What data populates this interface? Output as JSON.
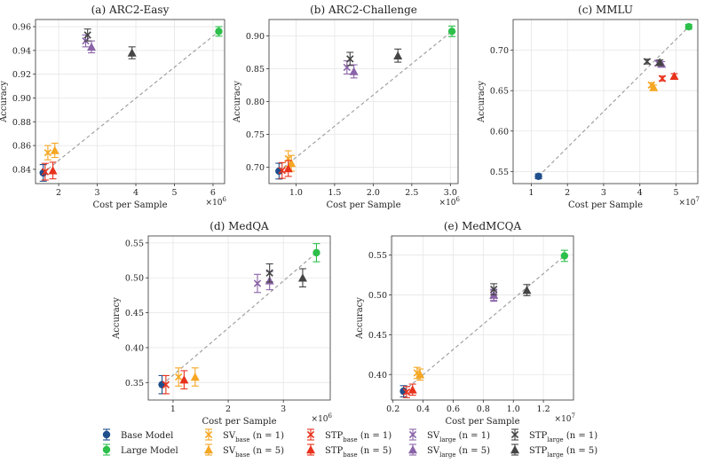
{
  "figure": {
    "legend": [
      {
        "label": "Base Model",
        "color": "#1f4e8c",
        "marker": "circle"
      },
      {
        "label": "Large Model",
        "color": "#2cc04a",
        "marker": "circle"
      },
      {
        "label": "SV",
        "sub": "base",
        "suffix": " (n = 1)",
        "color": "#f5a623",
        "marker": "x"
      },
      {
        "label": "SV",
        "sub": "base",
        "suffix": " (n = 5)",
        "color": "#f5a623",
        "marker": "triangle"
      },
      {
        "label": "STP",
        "sub": "base",
        "suffix": " (n = 1)",
        "color": "#e8321c",
        "marker": "x"
      },
      {
        "label": "STP",
        "sub": "base",
        "suffix": " (n = 5)",
        "color": "#e8321c",
        "marker": "triangle"
      },
      {
        "label": "SV",
        "sub": "large",
        "suffix": " (n = 1)",
        "color": "#8a63a8",
        "marker": "x"
      },
      {
        "label": "SV",
        "sub": "large",
        "suffix": " (n = 5)",
        "color": "#8a63a8",
        "marker": "triangle"
      },
      {
        "label": "STP",
        "sub": "large",
        "suffix": " (n = 1)",
        "color": "#444444",
        "marker": "x"
      },
      {
        "label": "STP",
        "sub": "large",
        "suffix": " (n = 5)",
        "color": "#444444",
        "marker": "triangle"
      }
    ]
  },
  "chart_data": [
    {
      "type": "scatter",
      "title": "(a) ARC2-Easy",
      "xlabel": "Cost per Sample",
      "ylabel": "Accuracy",
      "x_exponent": "×10^6",
      "xlim": [
        1.4,
        6.3
      ],
      "ylim": [
        0.828,
        0.966
      ],
      "xticks": [
        2,
        3,
        4,
        5,
        6
      ],
      "yticks": [
        0.84,
        0.86,
        0.88,
        0.9,
        0.92,
        0.94,
        0.96
      ],
      "ytick_labels": [
        "0.84",
        "0.86",
        "0.88",
        "0.90",
        "0.92",
        "0.94",
        "0.96"
      ],
      "trend": [
        [
          1.6,
          0.837
        ],
        [
          6.15,
          0.956
        ]
      ],
      "points": [
        {
          "series": 0,
          "x": 1.6,
          "y": 0.837,
          "err": 0.007
        },
        {
          "series": 1,
          "x": 6.15,
          "y": 0.956,
          "err": 0.004
        },
        {
          "series": 2,
          "x": 1.72,
          "y": 0.854,
          "err": 0.006
        },
        {
          "series": 3,
          "x": 1.9,
          "y": 0.856,
          "err": 0.006
        },
        {
          "series": 4,
          "x": 1.65,
          "y": 0.838,
          "err": 0.007
        },
        {
          "series": 5,
          "x": 1.85,
          "y": 0.839,
          "err": 0.007
        },
        {
          "series": 6,
          "x": 2.7,
          "y": 0.948,
          "err": 0.005
        },
        {
          "series": 7,
          "x": 2.85,
          "y": 0.943,
          "err": 0.005
        },
        {
          "series": 8,
          "x": 2.75,
          "y": 0.953,
          "err": 0.005
        },
        {
          "series": 9,
          "x": 3.9,
          "y": 0.938,
          "err": 0.005
        }
      ]
    },
    {
      "type": "scatter",
      "title": "(b) ARC2-Challenge",
      "xlabel": "Cost per Sample",
      "ylabel": "Accuracy",
      "x_exponent": "×10^6",
      "xlim": [
        0.65,
        3.1
      ],
      "ylim": [
        0.675,
        0.925
      ],
      "xticks": [
        1.0,
        1.5,
        2.0,
        2.5,
        3.0
      ],
      "yticks": [
        0.7,
        0.75,
        0.8,
        0.85,
        0.9
      ],
      "xtick_labels": [
        "1.0",
        "1.5",
        "2.0",
        "2.5",
        "3.0"
      ],
      "ytick_labels": [
        "0.70",
        "0.75",
        "0.80",
        "0.85",
        "0.90"
      ],
      "trend": [
        [
          0.78,
          0.694
        ],
        [
          3.02,
          0.907
        ]
      ],
      "points": [
        {
          "series": 0,
          "x": 0.78,
          "y": 0.694,
          "err": 0.012
        },
        {
          "series": 1,
          "x": 3.02,
          "y": 0.907,
          "err": 0.008
        },
        {
          "series": 2,
          "x": 0.9,
          "y": 0.713,
          "err": 0.012
        },
        {
          "series": 3,
          "x": 0.94,
          "y": 0.706,
          "err": 0.012
        },
        {
          "series": 4,
          "x": 0.82,
          "y": 0.695,
          "err": 0.012
        },
        {
          "series": 5,
          "x": 0.9,
          "y": 0.698,
          "err": 0.012
        },
        {
          "series": 6,
          "x": 1.66,
          "y": 0.852,
          "err": 0.01
        },
        {
          "series": 7,
          "x": 1.75,
          "y": 0.846,
          "err": 0.01
        },
        {
          "series": 8,
          "x": 1.7,
          "y": 0.865,
          "err": 0.01
        },
        {
          "series": 9,
          "x": 2.32,
          "y": 0.87,
          "err": 0.01
        }
      ]
    },
    {
      "type": "scatter",
      "title": "(c) MMLU",
      "xlabel": "Cost per Sample",
      "ylabel": "Accuracy",
      "x_exponent": "×10^7",
      "xlim": [
        0.5,
        5.6
      ],
      "ylim": [
        0.535,
        0.738
      ],
      "xticks": [
        1,
        2,
        3,
        4,
        5
      ],
      "yticks": [
        0.55,
        0.6,
        0.65,
        0.7
      ],
      "ytick_labels": [
        "0.55",
        "0.60",
        "0.65",
        "0.70"
      ],
      "trend": [
        [
          1.2,
          0.544
        ],
        [
          5.35,
          0.729
        ]
      ],
      "points": [
        {
          "series": 0,
          "x": 1.2,
          "y": 0.544,
          "err": 0.003
        },
        {
          "series": 1,
          "x": 5.35,
          "y": 0.729,
          "err": 0.003
        },
        {
          "series": 2,
          "x": 4.32,
          "y": 0.657,
          "err": 0.003
        },
        {
          "series": 3,
          "x": 4.38,
          "y": 0.654,
          "err": 0.003
        },
        {
          "series": 4,
          "x": 4.62,
          "y": 0.665,
          "err": 0.003
        },
        {
          "series": 5,
          "x": 4.95,
          "y": 0.668,
          "err": 0.003
        },
        {
          "series": 6,
          "x": 4.5,
          "y": 0.684,
          "err": 0.003
        },
        {
          "series": 7,
          "x": 4.6,
          "y": 0.683,
          "err": 0.003
        },
        {
          "series": 8,
          "x": 4.2,
          "y": 0.686,
          "err": 0.003
        },
        {
          "series": 9,
          "x": 4.55,
          "y": 0.685,
          "err": 0.003
        }
      ]
    },
    {
      "type": "scatter",
      "title": "(d) MedQA",
      "xlabel": "Cost per Sample",
      "ylabel": "Accuracy",
      "x_exponent": "×10^6",
      "xlim": [
        0.55,
        3.85
      ],
      "ylim": [
        0.325,
        0.56
      ],
      "xticks": [
        1,
        2,
        3
      ],
      "yticks": [
        0.35,
        0.4,
        0.45,
        0.5,
        0.55
      ],
      "ytick_labels": [
        "0.35",
        "0.40",
        "0.45",
        "0.50",
        "0.55"
      ],
      "trend": [
        [
          0.8,
          0.347
        ],
        [
          3.6,
          0.536
        ]
      ],
      "points": [
        {
          "series": 0,
          "x": 0.8,
          "y": 0.347,
          "err": 0.013
        },
        {
          "series": 1,
          "x": 3.6,
          "y": 0.536,
          "err": 0.013
        },
        {
          "series": 2,
          "x": 1.1,
          "y": 0.358,
          "err": 0.013
        },
        {
          "series": 3,
          "x": 1.4,
          "y": 0.358,
          "err": 0.013
        },
        {
          "series": 4,
          "x": 0.87,
          "y": 0.347,
          "err": 0.013
        },
        {
          "series": 5,
          "x": 1.2,
          "y": 0.354,
          "err": 0.013
        },
        {
          "series": 6,
          "x": 2.53,
          "y": 0.492,
          "err": 0.013
        },
        {
          "series": 7,
          "x": 2.75,
          "y": 0.496,
          "err": 0.013
        },
        {
          "series": 8,
          "x": 2.75,
          "y": 0.507,
          "err": 0.013
        },
        {
          "series": 9,
          "x": 3.35,
          "y": 0.5,
          "err": 0.013
        }
      ]
    },
    {
      "type": "scatter",
      "title": "(e) MedMCQA",
      "xlabel": "Cost per Sample",
      "ylabel": "Accuracy",
      "x_exponent": "×10^7",
      "xlim": [
        0.19,
        1.4
      ],
      "ylim": [
        0.368,
        0.574
      ],
      "xticks": [
        0.2,
        0.4,
        0.6,
        0.8,
        1.0,
        1.2
      ],
      "yticks": [
        0.4,
        0.45,
        0.5,
        0.55
      ],
      "xtick_labels": [
        "0.2",
        "0.4",
        "0.6",
        "0.8",
        "1.0",
        "1.2"
      ],
      "ytick_labels": [
        "0.40",
        "0.45",
        "0.50",
        "0.55"
      ],
      "trend": [
        [
          0.27,
          0.379
        ],
        [
          1.34,
          0.549
        ]
      ],
      "points": [
        {
          "series": 0,
          "x": 0.27,
          "y": 0.379,
          "err": 0.007
        },
        {
          "series": 1,
          "x": 1.34,
          "y": 0.549,
          "err": 0.007
        },
        {
          "series": 2,
          "x": 0.36,
          "y": 0.402,
          "err": 0.007
        },
        {
          "series": 3,
          "x": 0.38,
          "y": 0.4,
          "err": 0.007
        },
        {
          "series": 4,
          "x": 0.29,
          "y": 0.378,
          "err": 0.007
        },
        {
          "series": 5,
          "x": 0.33,
          "y": 0.381,
          "err": 0.007
        },
        {
          "series": 6,
          "x": 0.87,
          "y": 0.499,
          "err": 0.007
        },
        {
          "series": 7,
          "x": 0.87,
          "y": 0.5,
          "err": 0.007
        },
        {
          "series": 8,
          "x": 0.87,
          "y": 0.507,
          "err": 0.007
        },
        {
          "series": 9,
          "x": 1.09,
          "y": 0.506,
          "err": 0.007
        }
      ]
    }
  ]
}
